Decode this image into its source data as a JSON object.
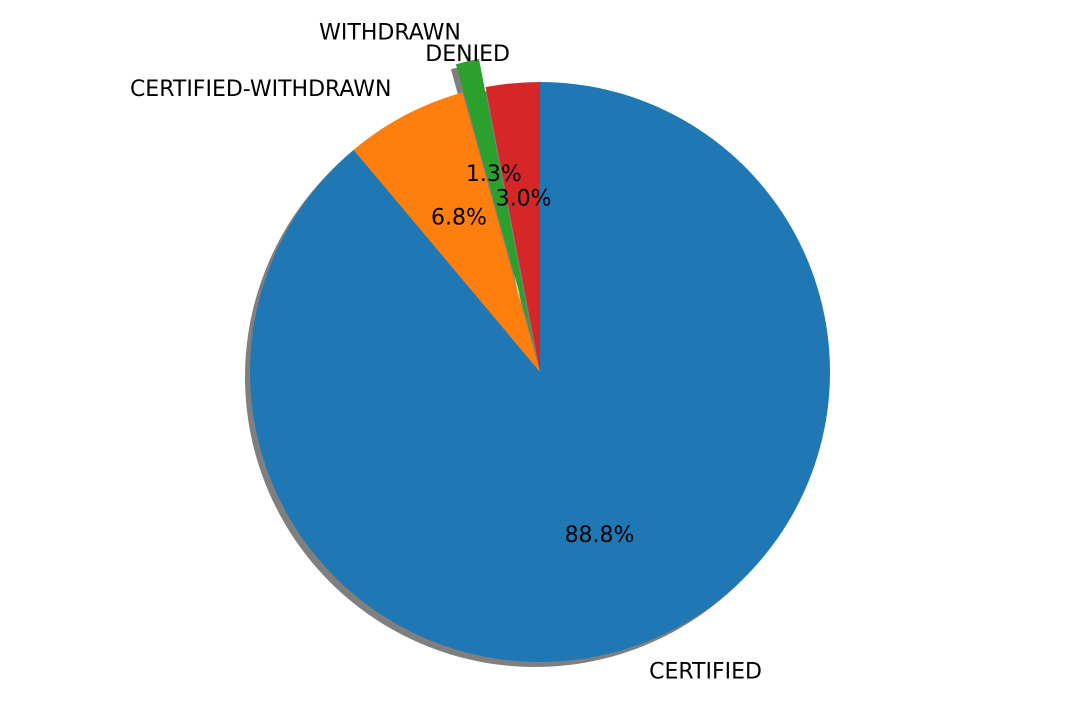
{
  "chart_data": {
    "type": "pie",
    "title": "",
    "categories": [
      "CERTIFIED",
      "CERTIFIED-WITHDRAWN",
      "WITHDRAWN",
      "DENIED"
    ],
    "values": [
      88.8,
      6.8,
      1.3,
      3.0
    ],
    "percent_labels": [
      "88.8%",
      "6.8%",
      "1.3%",
      "3.0%"
    ],
    "colors": [
      "#1f77b4",
      "#ff7f0e",
      "#2ca02c",
      "#d62728"
    ],
    "exploded": [
      false,
      false,
      true,
      false
    ],
    "start_angle_deg": 90,
    "direction": "clockwise",
    "shadow": true
  }
}
